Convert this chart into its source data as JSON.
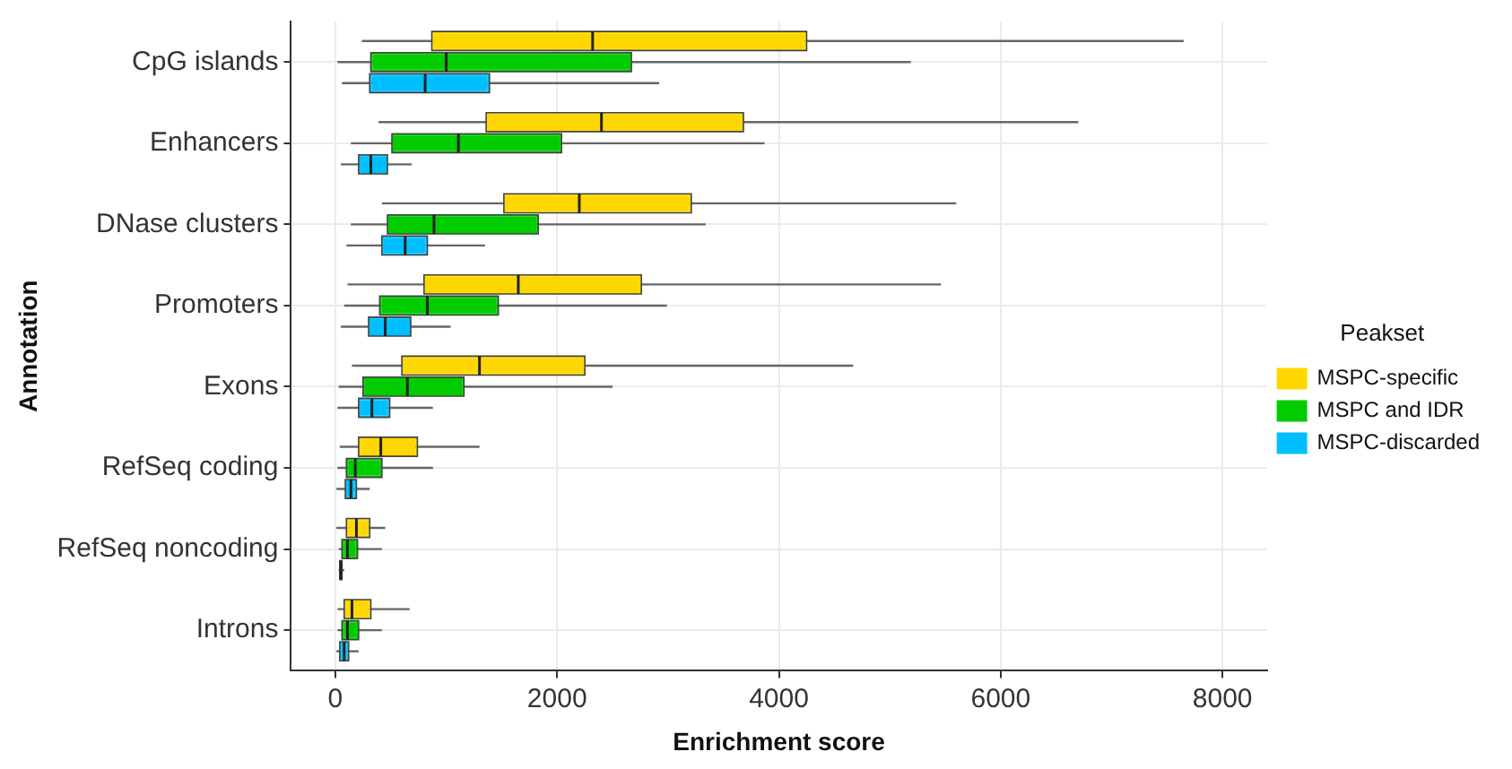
{
  "chart_data": {
    "type": "box",
    "orientation": "horizontal",
    "xlabel": "Enrichment score",
    "ylabel": "Annotation",
    "legend_title": "Peakset",
    "legend": "right",
    "grid": true,
    "categories": [
      "CpG islands",
      "Enhancers",
      "DNase clusters",
      "Promoters",
      "Exons",
      "RefSeq coding",
      "RefSeq noncoding",
      "Introns"
    ],
    "xlim": [
      -400,
      8400
    ],
    "xticks": [
      0,
      2000,
      4000,
      6000,
      8000
    ],
    "series": [
      {
        "name": "MSPC-specific",
        "color": "#ffd700",
        "boxes": [
          {
            "low": 240,
            "q1": 870,
            "median": 2320,
            "q3": 4250,
            "high": 7650
          },
          {
            "low": 390,
            "q1": 1360,
            "median": 2400,
            "q3": 3680,
            "high": 6700
          },
          {
            "low": 420,
            "q1": 1520,
            "median": 2200,
            "q3": 3210,
            "high": 5600
          },
          {
            "low": 110,
            "q1": 800,
            "median": 1650,
            "q3": 2760,
            "high": 5460
          },
          {
            "low": 150,
            "q1": 600,
            "median": 1300,
            "q3": 2250,
            "high": 4670
          },
          {
            "low": 40,
            "q1": 210,
            "median": 410,
            "q3": 740,
            "high": 1300
          },
          {
            "low": 10,
            "q1": 100,
            "median": 190,
            "q3": 310,
            "high": 450
          },
          {
            "low": 20,
            "q1": 80,
            "median": 150,
            "q3": 320,
            "high": 670
          }
        ]
      },
      {
        "name": "MSPC and IDR",
        "color": "#00cc00",
        "boxes": [
          {
            "low": 20,
            "q1": 320,
            "median": 1000,
            "q3": 2670,
            "high": 5190
          },
          {
            "low": 140,
            "q1": 510,
            "median": 1110,
            "q3": 2040,
            "high": 3870
          },
          {
            "low": 140,
            "q1": 470,
            "median": 890,
            "q3": 1830,
            "high": 3340
          },
          {
            "low": 80,
            "q1": 400,
            "median": 830,
            "q3": 1470,
            "high": 2990
          },
          {
            "low": 30,
            "q1": 250,
            "median": 650,
            "q3": 1160,
            "high": 2500
          },
          {
            "low": 20,
            "q1": 100,
            "median": 180,
            "q3": 420,
            "high": 880
          },
          {
            "low": 30,
            "q1": 60,
            "median": 110,
            "q3": 200,
            "high": 420
          },
          {
            "low": 20,
            "q1": 60,
            "median": 110,
            "q3": 210,
            "high": 420
          }
        ]
      },
      {
        "name": "MSPC-discarded",
        "color": "#00bfff",
        "boxes": [
          {
            "low": 60,
            "q1": 310,
            "median": 810,
            "q3": 1390,
            "high": 2920
          },
          {
            "low": 50,
            "q1": 210,
            "median": 320,
            "q3": 470,
            "high": 690
          },
          {
            "low": 100,
            "q1": 420,
            "median": 630,
            "q3": 830,
            "high": 1350
          },
          {
            "low": 50,
            "q1": 300,
            "median": 450,
            "q3": 680,
            "high": 1040
          },
          {
            "low": 20,
            "q1": 210,
            "median": 330,
            "q3": 490,
            "high": 880
          },
          {
            "low": 10,
            "q1": 90,
            "median": 140,
            "q3": 190,
            "high": 310
          },
          {
            "low": 30,
            "q1": 40,
            "median": 50,
            "q3": 60,
            "high": 80
          },
          {
            "low": 10,
            "q1": 40,
            "median": 80,
            "q3": 120,
            "high": 210
          }
        ]
      }
    ]
  }
}
